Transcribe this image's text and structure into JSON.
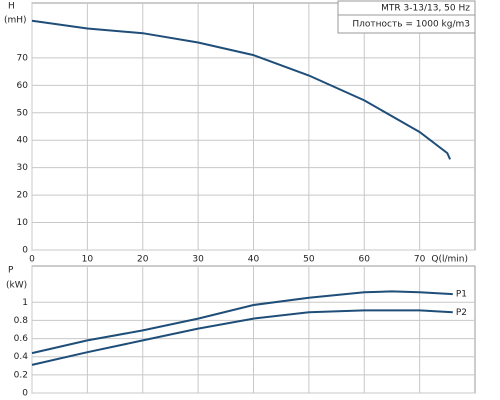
{
  "chart_data": [
    {
      "type": "line",
      "title": "MTR 3-13/13, 50 Hz",
      "subtitle": "Плотность = 1000 kg/m3",
      "ylabel": "H",
      "yunit": "(mH)",
      "xlabel": "Q(l/min)",
      "xlim": [
        0,
        80
      ],
      "xticks": [
        0,
        10,
        20,
        30,
        40,
        50,
        60,
        70
      ],
      "ylim": [
        0,
        90
      ],
      "yticks": [
        0,
        10,
        20,
        30,
        40,
        50,
        60,
        70
      ],
      "grid": true,
      "x": [
        0,
        10,
        20,
        30,
        40,
        50,
        60,
        70,
        75,
        75.5
      ],
      "series": [
        {
          "name": "H",
          "color": "#1f4e79",
          "values": [
            83.5,
            80.7,
            79,
            75.6,
            71,
            63.6,
            54.5,
            43,
            35.3,
            33
          ]
        }
      ]
    },
    {
      "type": "line",
      "ylabel": "P",
      "yunit": "(kW)",
      "xlim": [
        0,
        80
      ],
      "ylim": [
        0,
        1.4
      ],
      "yticks": [
        0,
        0.2,
        0.4,
        0.6,
        0.8,
        1
      ],
      "grid": true,
      "x": [
        0,
        10,
        20,
        30,
        40,
        50,
        60,
        65,
        70,
        76
      ],
      "series": [
        {
          "name": "P1",
          "color": "#1f4e79",
          "values": [
            0.44,
            0.58,
            0.69,
            0.82,
            0.97,
            1.05,
            1.11,
            1.12,
            1.11,
            1.09
          ]
        },
        {
          "name": "P2",
          "color": "#1f4e79",
          "values": [
            0.31,
            0.45,
            0.58,
            0.71,
            0.82,
            0.89,
            0.91,
            0.91,
            0.91,
            0.89
          ]
        }
      ]
    }
  ]
}
